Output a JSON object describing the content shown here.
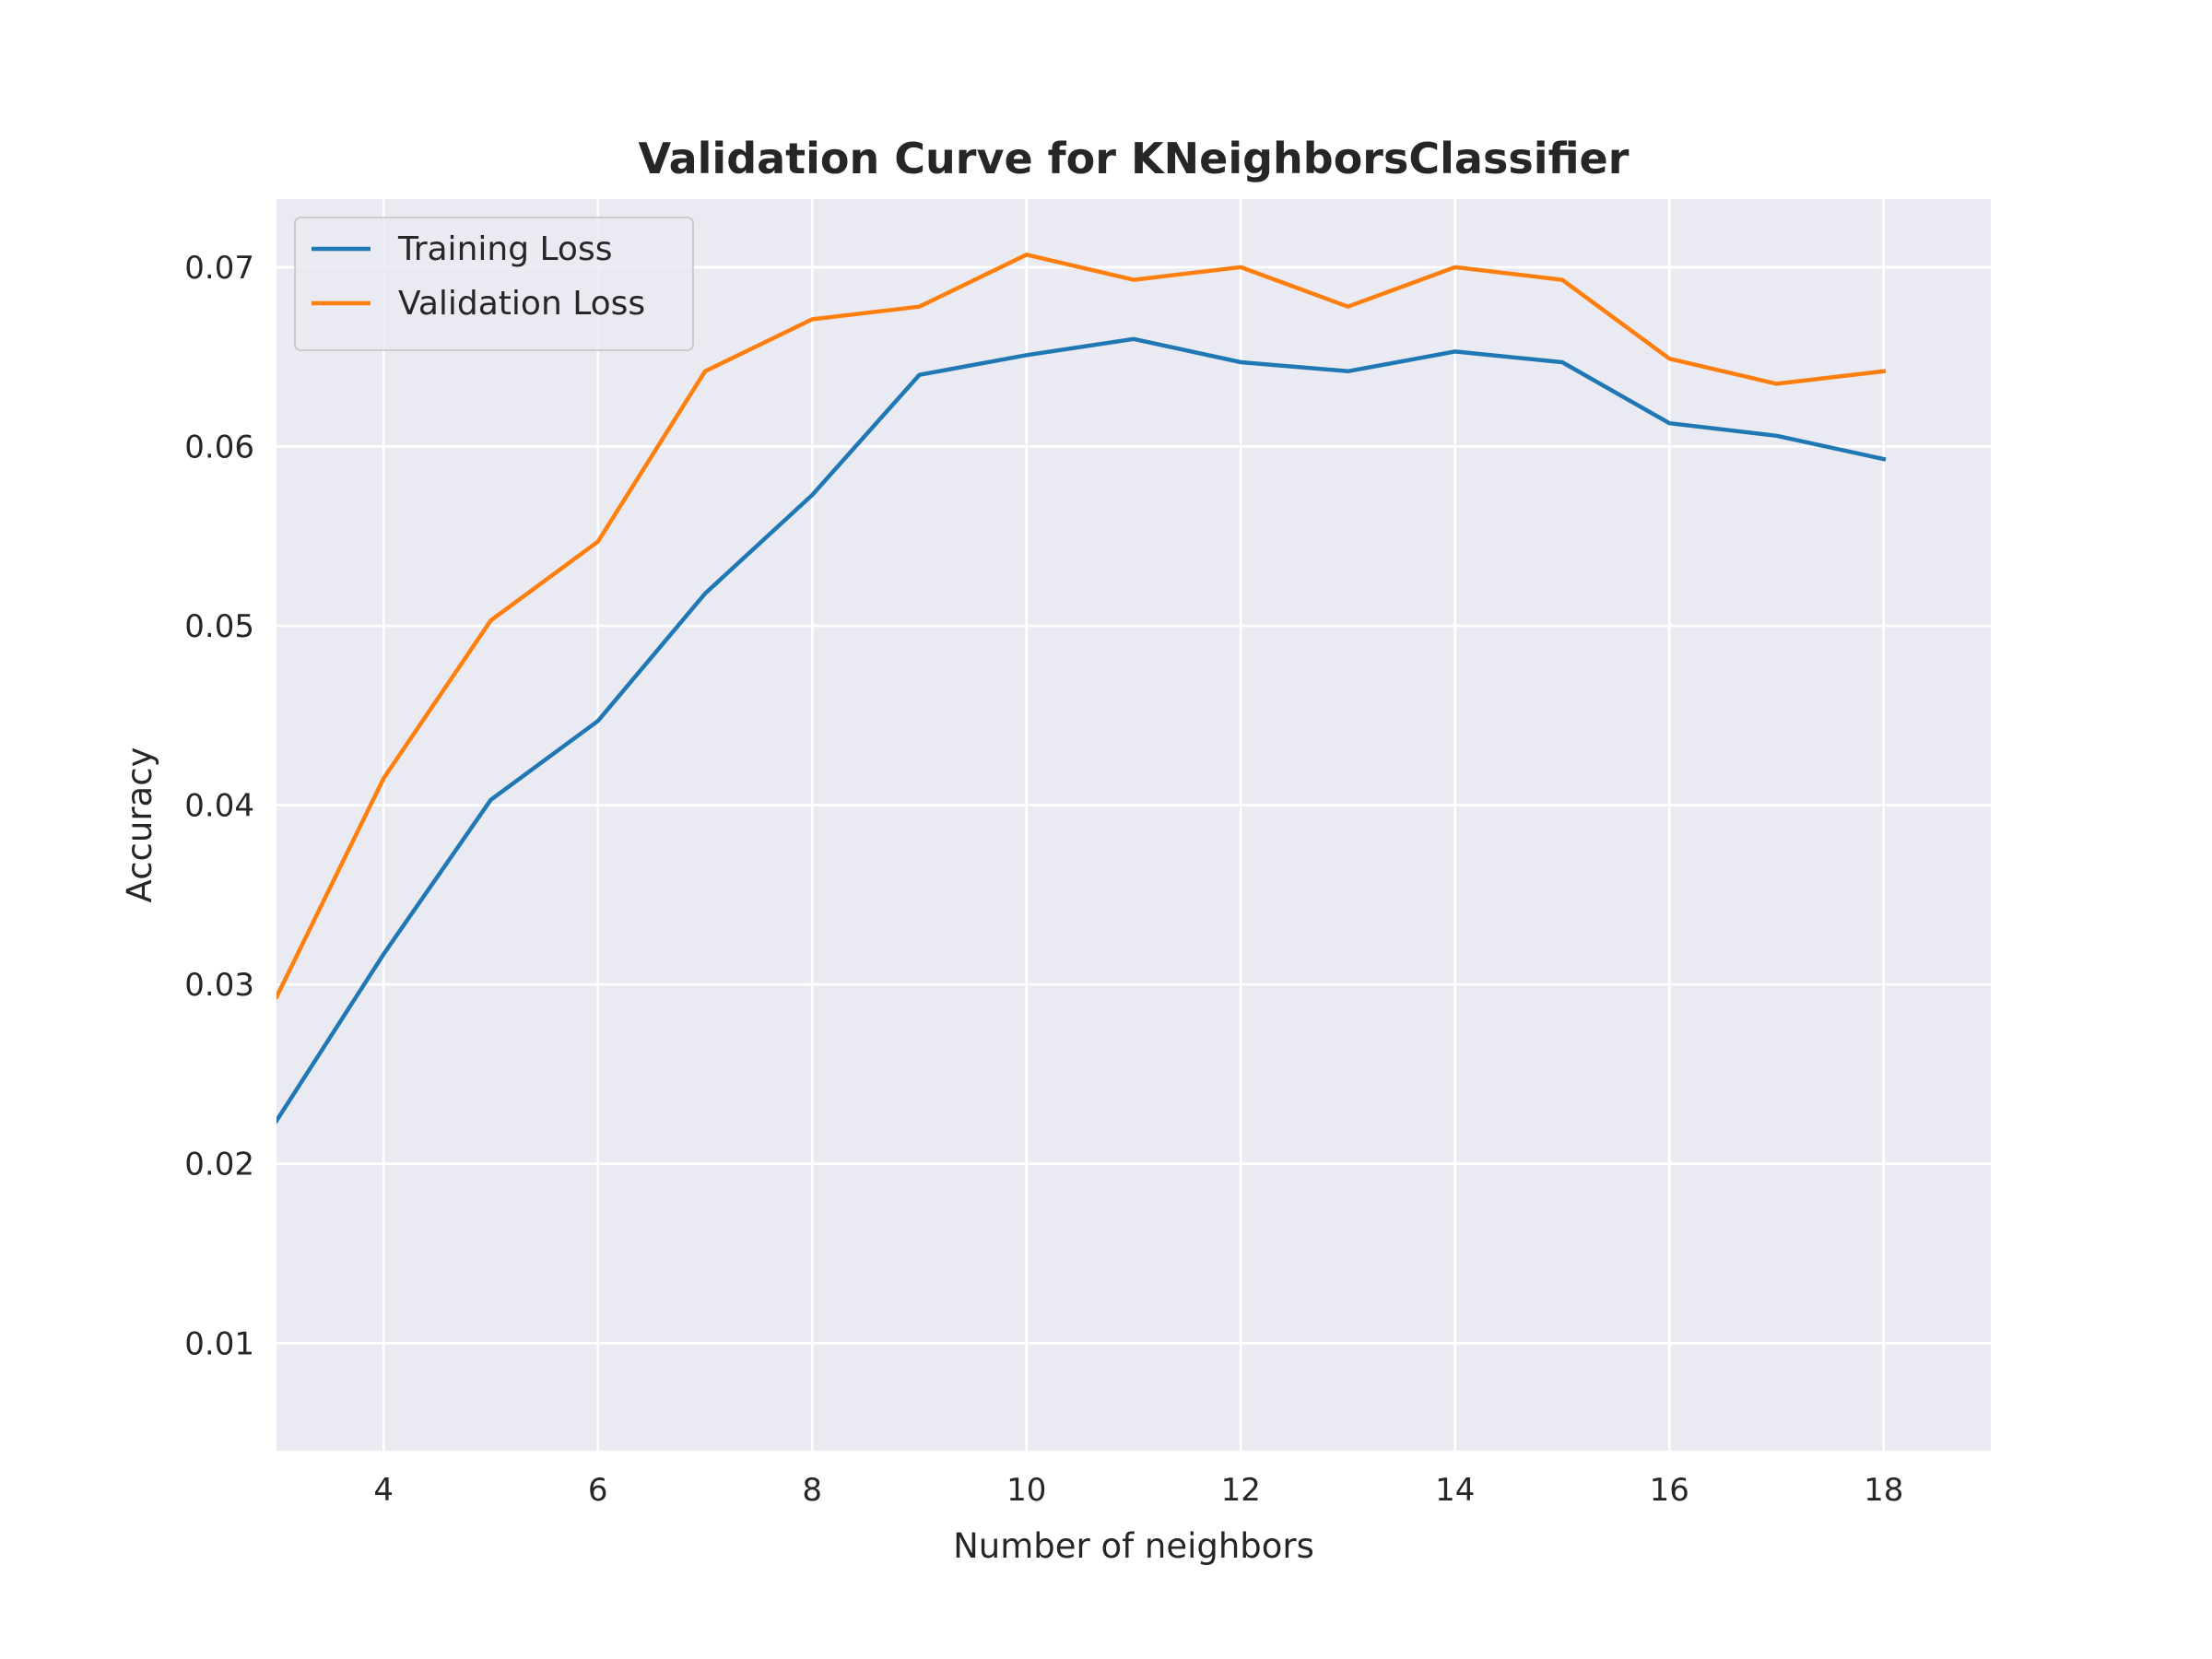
{
  "chart_data": {
    "type": "line",
    "title": "Validation Curve for KNeighborsClassifier",
    "xlabel": "Number of neighbors",
    "ylabel": "Accuracy",
    "x": [
      3,
      4,
      5,
      6,
      7,
      8,
      9,
      10,
      11,
      12,
      13,
      14,
      15,
      16,
      17,
      18
    ],
    "series": [
      {
        "name": "Training Loss",
        "color": "#1f77b4",
        "values": [
          0.0224,
          0.0317,
          0.0403,
          0.0447,
          0.0518,
          0.0573,
          0.064,
          0.0651,
          0.066,
          0.0647,
          0.0642,
          0.0653,
          0.0647,
          0.0613,
          0.0606,
          0.0593
        ]
      },
      {
        "name": "Validation Loss",
        "color": "#ff7f0e",
        "values": [
          0.0293,
          0.0415,
          0.0503,
          0.0547,
          0.0642,
          0.0671,
          0.0678,
          0.0707,
          0.0693,
          0.07,
          0.0678,
          0.07,
          0.0693,
          0.0649,
          0.0635,
          0.0642
        ]
      }
    ],
    "xlim": [
      3,
      19
    ],
    "ylim": [
      0.004,
      0.0738
    ],
    "xticks": [
      4,
      6,
      8,
      10,
      12,
      14,
      16,
      18
    ],
    "xtick_labels": [
      "4",
      "6",
      "8",
      "10",
      "12",
      "14",
      "16",
      "18"
    ],
    "yticks": [
      0.01,
      0.02,
      0.03,
      0.04,
      0.05,
      0.06,
      0.07
    ],
    "ytick_labels": [
      "0.01",
      "0.02",
      "0.03",
      "0.04",
      "0.05",
      "0.06",
      "0.07"
    ],
    "grid": true,
    "legend_position": "top-left",
    "background_color": "#eaeaf2",
    "grid_color": "#ffffff"
  }
}
